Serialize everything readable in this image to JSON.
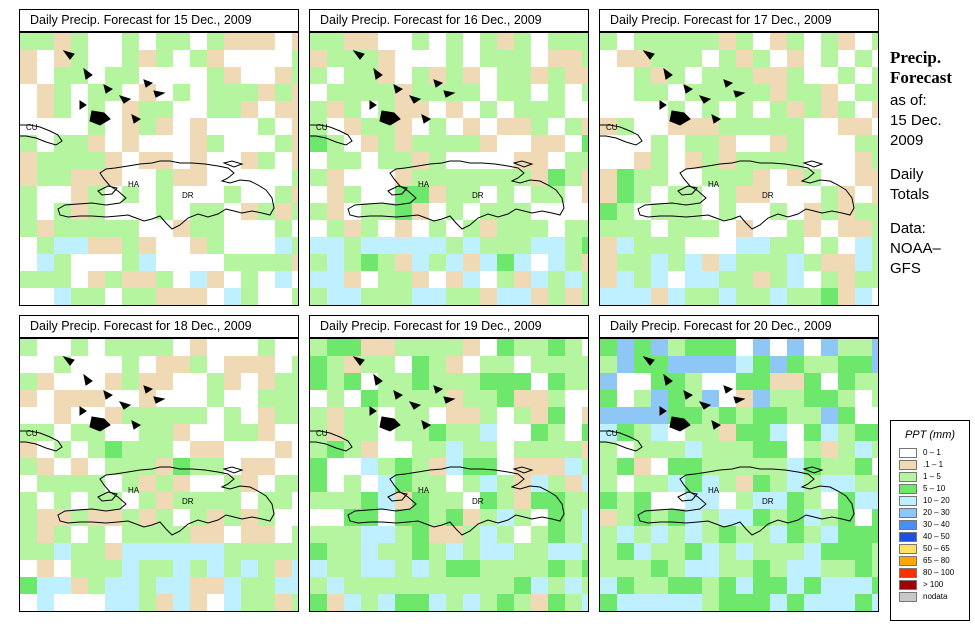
{
  "info": {
    "title_line1": "Precip.",
    "title_line2": "Forecast",
    "asof_label": "as of:",
    "asof_day": "15 Dec.",
    "asof_year": "2009",
    "totals_line1": "Daily",
    "totals_line2": "Totals",
    "source_line1": "Data:",
    "source_line2": "NOAA–",
    "source_line3": "GFS"
  },
  "map_labels": {
    "cuba": "CU",
    "haiti": "HA",
    "dominican_republic": "DR"
  },
  "panels": [
    {
      "title": "Daily Precip. Forecast for  15 Dec., 2009",
      "seed": 11,
      "prob": [
        0.48,
        0.35,
        0.0,
        0.0
      ],
      "band_bias": 0.18
    },
    {
      "title": "Daily Precip. Forecast for  16 Dec., 2009",
      "seed": 23,
      "prob": [
        0.4,
        0.48,
        0.04,
        0.0
      ],
      "band_bias": 0.28
    },
    {
      "title": "Daily Precip. Forecast for  17 Dec., 2009",
      "seed": 37,
      "prob": [
        0.45,
        0.42,
        0.02,
        0.0
      ],
      "band_bias": 0.3
    },
    {
      "title": "Daily Precip. Forecast for  18 Dec., 2009",
      "seed": 41,
      "prob": [
        0.45,
        0.4,
        0.02,
        0.0
      ],
      "band_bias": 0.35
    },
    {
      "title": "Daily Precip. Forecast for  19 Dec., 2009",
      "seed": 53,
      "prob": [
        0.25,
        0.45,
        0.18,
        0.02
      ],
      "band_bias": 0.3
    },
    {
      "title": "Daily Precip. Forecast for  20 Dec., 2009",
      "seed": 67,
      "prob": [
        0.18,
        0.4,
        0.3,
        0.08
      ],
      "band_bias": 0.25
    }
  ],
  "legend": {
    "title": "PPT (mm)",
    "classes": [
      {
        "label": "0 – 1",
        "color": "#ffffff"
      },
      {
        "label": ".1 – 1",
        "color": "#f0d9b5"
      },
      {
        "label": "1 – 5",
        "color": "#b6f5a0"
      },
      {
        "label": "5 – 10",
        "color": "#6de86d"
      },
      {
        "label": "10 – 20",
        "color": "#bff0ff"
      },
      {
        "label": "20 – 30",
        "color": "#8ec6f5"
      },
      {
        "label": "30 – 40",
        "color": "#4a8ff0"
      },
      {
        "label": "40 – 50",
        "color": "#1f50e0"
      },
      {
        "label": "50 – 65",
        "color": "#ffe066"
      },
      {
        "label": "65 – 80",
        "color": "#ffa500"
      },
      {
        "label": "80 – 100",
        "color": "#ff3000"
      },
      {
        "label": "> 100",
        "color": "#a00000"
      },
      {
        "label": "nodata",
        "color": "#c8c8c8"
      }
    ]
  }
}
